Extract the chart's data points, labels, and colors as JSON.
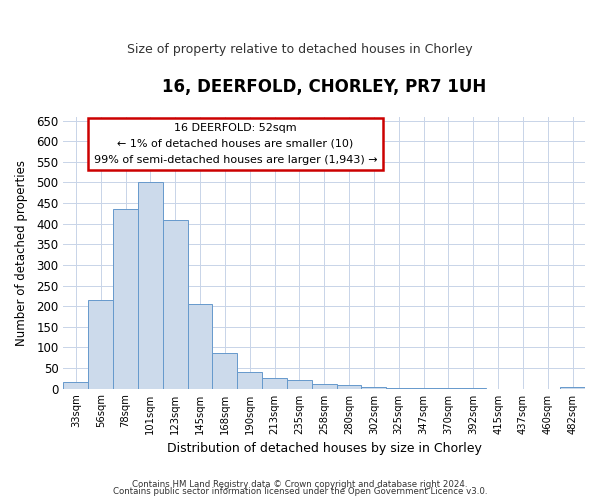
{
  "title": "16, DEERFOLD, CHORLEY, PR7 1UH",
  "subtitle": "Size of property relative to detached houses in Chorley",
  "xlabel": "Distribution of detached houses by size in Chorley",
  "ylabel": "Number of detached properties",
  "footnote1": "Contains HM Land Registry data © Crown copyright and database right 2024.",
  "footnote2": "Contains public sector information licensed under the Open Government Licence v3.0.",
  "annotation_title": "16 DEERFOLD: 52sqm",
  "annotation_line2": "← 1% of detached houses are smaller (10)",
  "annotation_line3": "99% of semi-detached houses are larger (1,943) →",
  "bar_color": "#ccdaeb",
  "bar_edge_color": "#6699cc",
  "annotation_box_edge": "#cc0000",
  "background_color": "#ffffff",
  "grid_color": "#c8d4e8",
  "categories": [
    "33sqm",
    "56sqm",
    "78sqm",
    "101sqm",
    "123sqm",
    "145sqm",
    "168sqm",
    "190sqm",
    "213sqm",
    "235sqm",
    "258sqm",
    "280sqm",
    "302sqm",
    "325sqm",
    "347sqm",
    "370sqm",
    "392sqm",
    "415sqm",
    "437sqm",
    "460sqm",
    "482sqm"
  ],
  "values": [
    15,
    215,
    435,
    500,
    410,
    205,
    87,
    40,
    25,
    20,
    12,
    8,
    3,
    1,
    1,
    1,
    1,
    0,
    0,
    0,
    4
  ],
  "ylim": [
    0,
    660
  ],
  "yticks": [
    0,
    50,
    100,
    150,
    200,
    250,
    300,
    350,
    400,
    450,
    500,
    550,
    600,
    650
  ],
  "figsize": [
    6.0,
    5.0
  ],
  "dpi": 100
}
